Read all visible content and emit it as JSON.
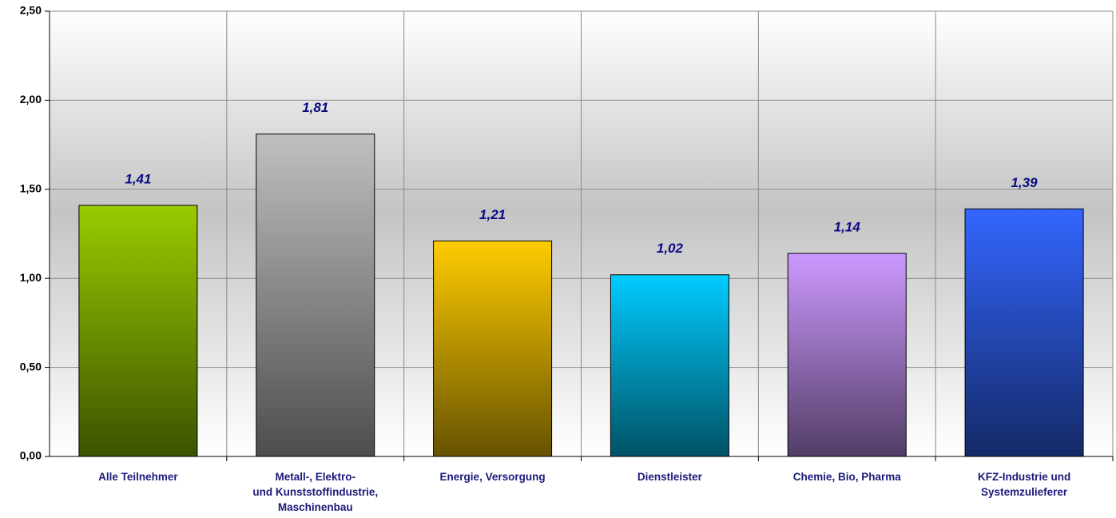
{
  "chart_data": {
    "type": "bar",
    "categories": [
      [
        "Alle Teilnehmer"
      ],
      [
        "Metall-, Elektro-",
        "und Kunststoffindustrie,",
        "Maschinenbau"
      ],
      [
        "Energie, Versorgung"
      ],
      [
        "Dienstleister"
      ],
      [
        "Chemie, Bio, Pharma"
      ],
      [
        "KFZ-Industrie und",
        "Systemzulieferer"
      ]
    ],
    "values": [
      1.41,
      1.81,
      1.21,
      1.02,
      1.14,
      1.39
    ],
    "value_labels": [
      "1,41",
      "1,81",
      "1,21",
      "1,02",
      "1,14",
      "1,39"
    ],
    "colors": [
      "#99cc00",
      "#c0c0c0",
      "#ffcc00",
      "#00ccff",
      "#cc99ff",
      "#3366ff"
    ],
    "ylim": [
      0,
      2.5
    ],
    "yticks": [
      {
        "value": 0,
        "label": "0,00"
      },
      {
        "value": 0.5,
        "label": "0,50"
      },
      {
        "value": 1,
        "label": "1,00"
      },
      {
        "value": 1.5,
        "label": "1,50"
      },
      {
        "value": 2,
        "label": "2,00"
      },
      {
        "value": 2.5,
        "label": "2,50"
      }
    ],
    "grid": true
  }
}
